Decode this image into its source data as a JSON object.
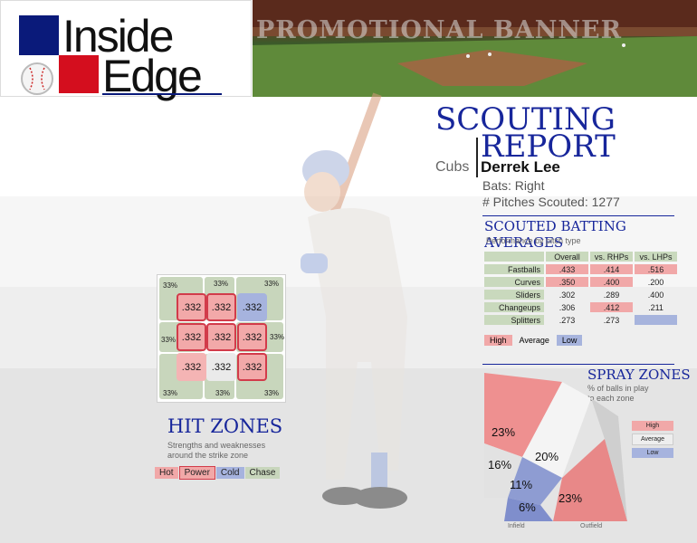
{
  "logo": {
    "line1": "Inside",
    "line2": "Edge"
  },
  "banner": {
    "text": "PROMOTIONAL BANNER"
  },
  "report": {
    "title_line1": "SCOUTING",
    "title_line2": "REPORT",
    "team": "Cubs",
    "player": "Derrek Lee",
    "bats": "Bats: Right",
    "pitches": "# Pitches Scouted: 1277"
  },
  "batting": {
    "title": "SCOUTED BATTING AVERAGES",
    "subtitle": "Performance by pitch type",
    "columns": [
      "Overall",
      "vs. RHPs",
      "vs. LHPs"
    ],
    "rows": [
      {
        "label": "Fastballs",
        "values": [
          ".433",
          ".414",
          ".516"
        ],
        "heat": [
          "hot",
          "hot",
          "hot"
        ]
      },
      {
        "label": "Curves",
        "values": [
          ".350",
          ".400",
          ".200"
        ],
        "heat": [
          "hot",
          "hot",
          ""
        ]
      },
      {
        "label": "Sliders",
        "values": [
          ".302",
          ".289",
          ".400"
        ],
        "heat": [
          "",
          "",
          ""
        ]
      },
      {
        "label": "Changeups",
        "values": [
          ".306",
          ".412",
          ".211"
        ],
        "heat": [
          "",
          "hot",
          ""
        ]
      },
      {
        "label": "Splitters",
        "values": [
          ".273",
          ".273",
          ""
        ],
        "heat": [
          "",
          "",
          "cold"
        ]
      }
    ],
    "legend": {
      "high": "High",
      "average": "Average",
      "low": "Low"
    }
  },
  "hit_zones": {
    "title": "HIT ZONES",
    "subtitle_line1": "Strengths and weaknesses",
    "subtitle_line2": "around the strike zone",
    "zones": [
      {
        "value": ".332",
        "heat": "hot-b"
      },
      {
        "value": ".332",
        "heat": "hot-b"
      },
      {
        "value": ".332",
        "heat": "cold"
      },
      {
        "value": ".332",
        "heat": "hot-b"
      },
      {
        "value": ".332",
        "heat": "hot-b"
      },
      {
        "value": ".332",
        "heat": "hot-b"
      },
      {
        "value": ".332",
        "heat": "hot-n"
      },
      {
        "value": ".332",
        "heat": "avg"
      },
      {
        "value": ".332",
        "heat": "hot-b"
      }
    ],
    "outer_pcts": {
      "top_left": "33%",
      "top_mid": "33%",
      "top_right": "33%",
      "mid_left": "33%",
      "mid_right": "33%",
      "bot_left": "33%",
      "bot_mid": "33%",
      "bot_right": "33%"
    },
    "legend": {
      "hot": "Hot",
      "power": "Power",
      "cold": "Cold",
      "chase": "Chase"
    }
  },
  "spray": {
    "title": "SPRAY ZONES",
    "subtitle_line1": "% of balls in play",
    "subtitle_line2": "to each zone",
    "zones": {
      "left_outfield": "23%",
      "center_outfield": "20%",
      "left_infield": "16%",
      "mid_infield": "11%",
      "short_infield": "6%",
      "right_outfield": "23%"
    },
    "infield_label": "Infield",
    "outfield_label": "Outfield",
    "legend": {
      "high": "High",
      "average": "Average",
      "low": "Low"
    }
  }
}
